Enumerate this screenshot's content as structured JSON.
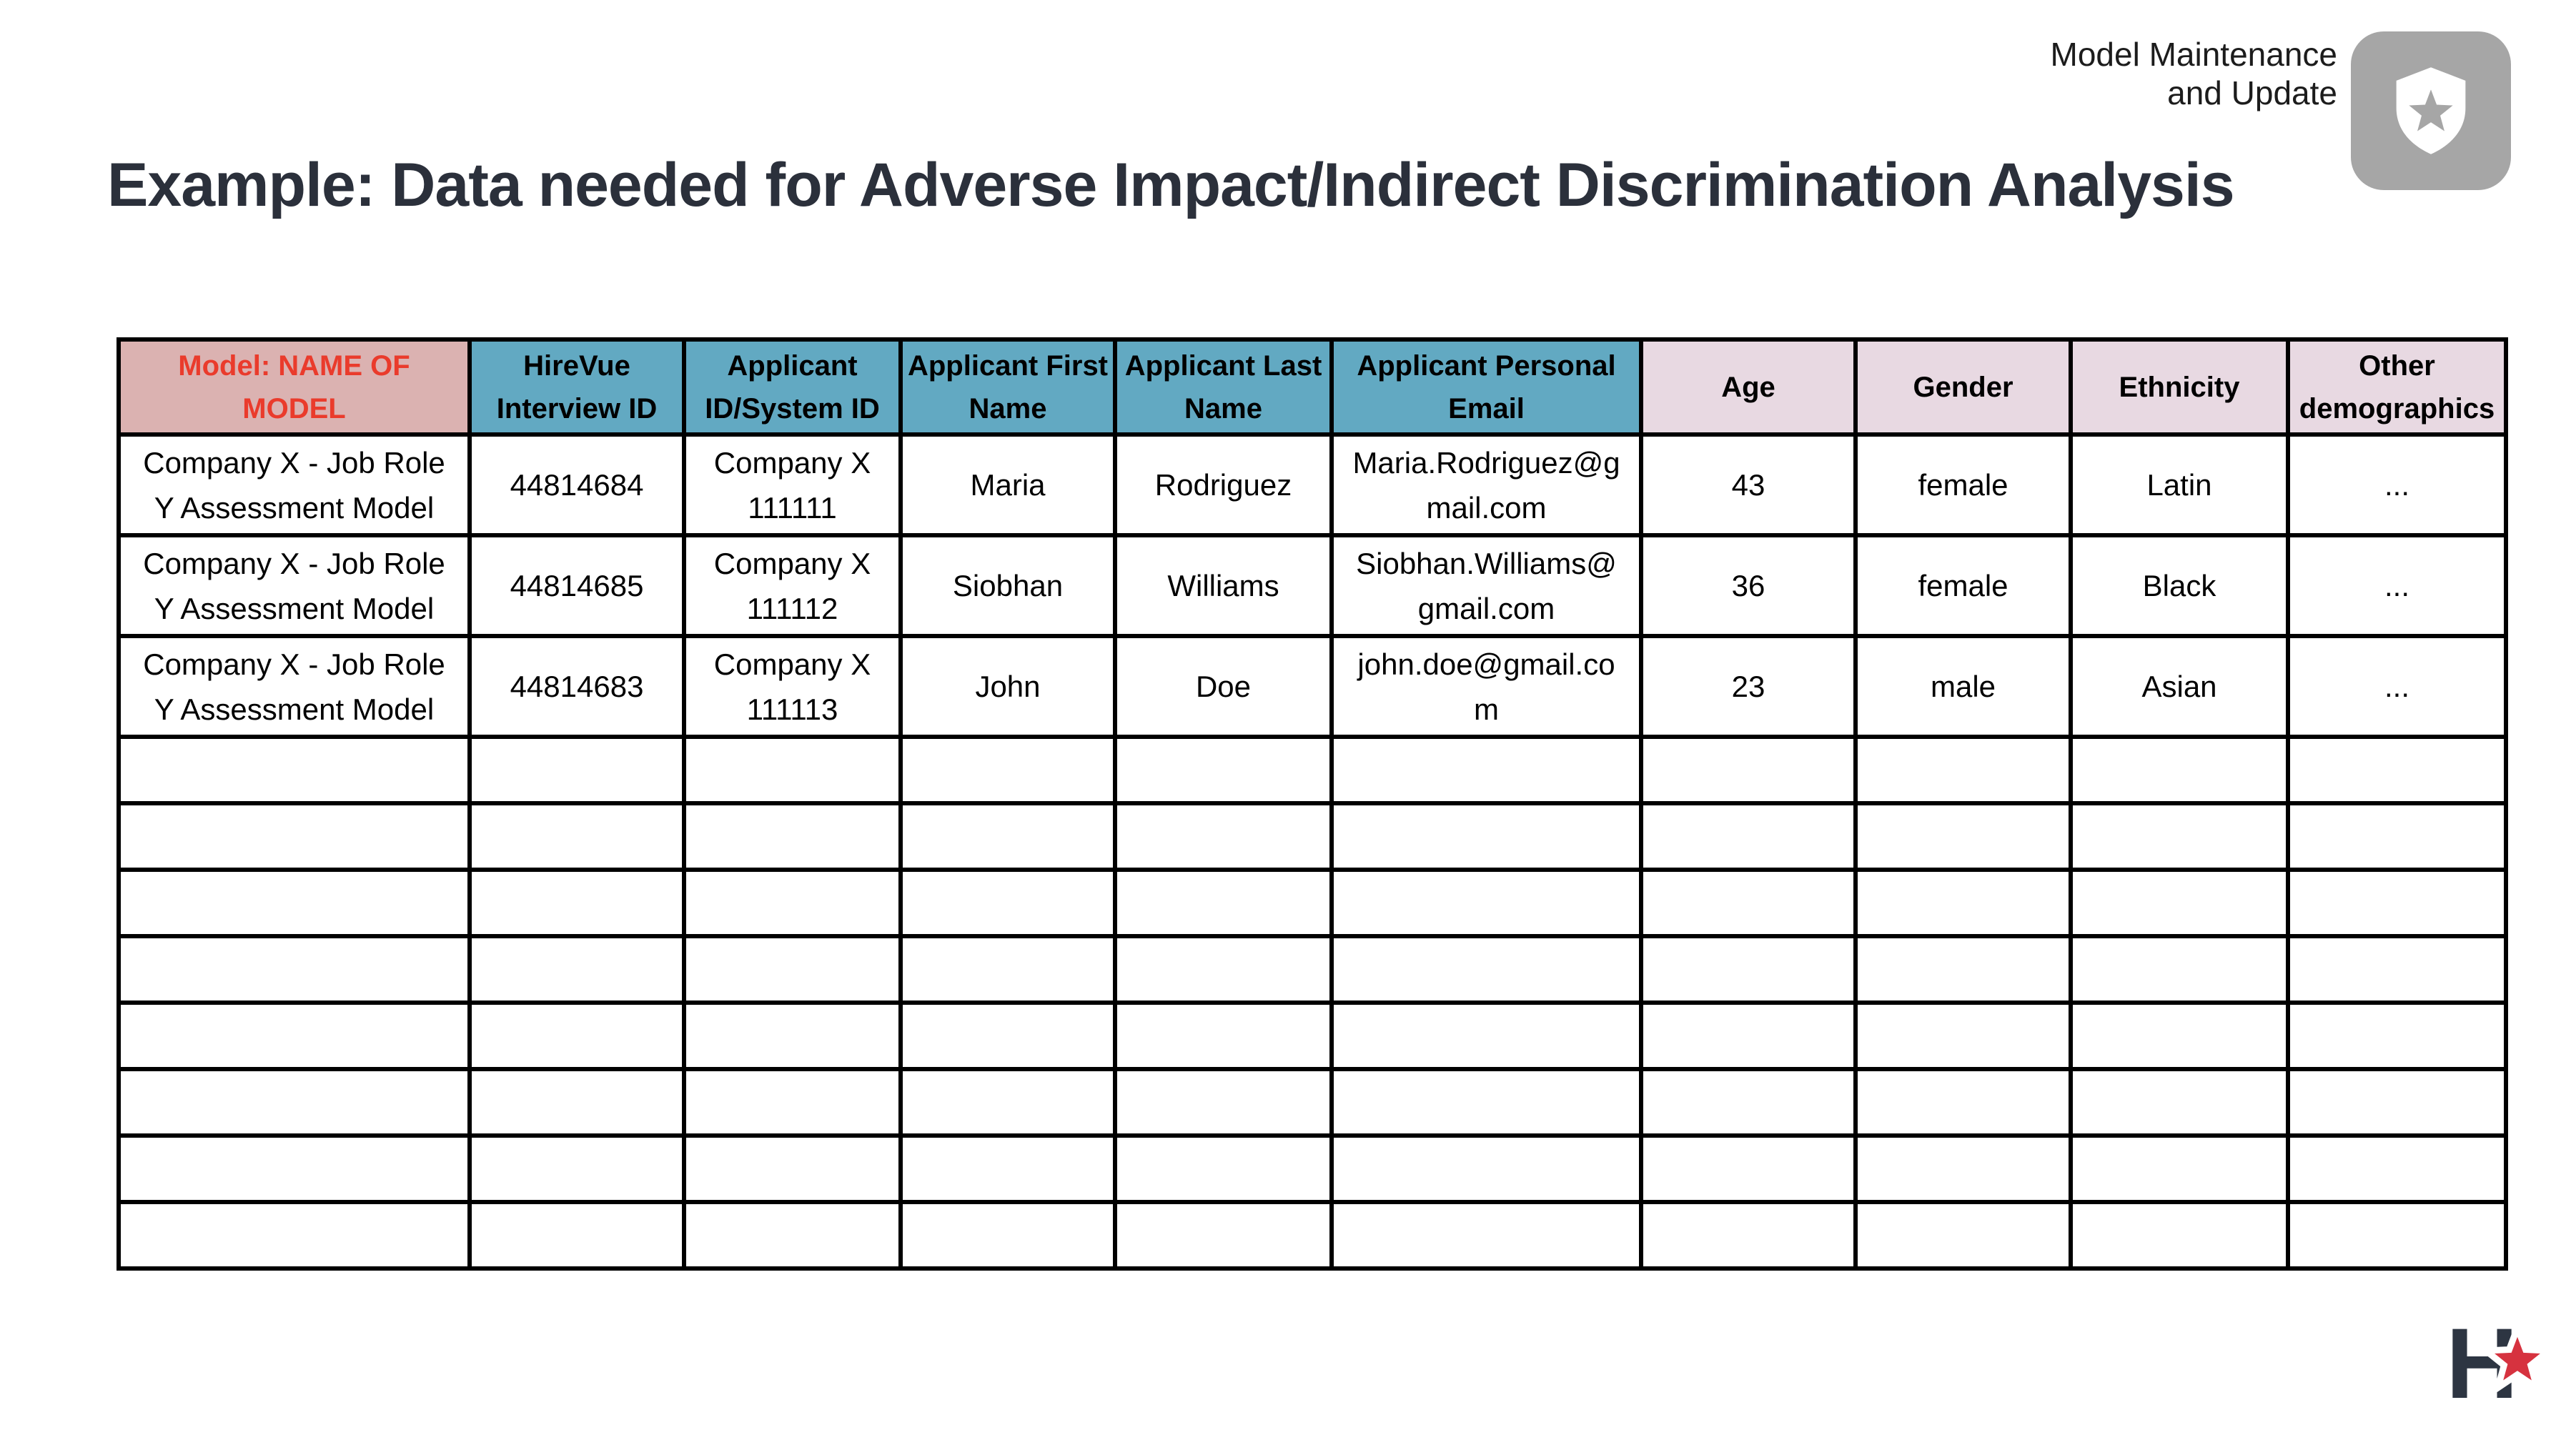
{
  "header": {
    "category_line1": "Model Maintenance",
    "category_line2": "and Update",
    "title": "Example: Data needed for Adverse Impact/Indirect Discrimination Analysis"
  },
  "badge": {
    "icon": "shield-star-icon",
    "background_color": "#a6a6a6",
    "shield_color": "#ffffff",
    "star_color": "#a6a6a6"
  },
  "table": {
    "columns": [
      {
        "label": "Model: NAME OF MODEL",
        "style": "model",
        "text_color": "#ea3b2c",
        "background": "#dbb2b1"
      },
      {
        "label": "HireVue Interview ID",
        "style": "teal",
        "background": "#62a9c2"
      },
      {
        "label": "Applicant ID/System ID",
        "style": "teal",
        "background": "#62a9c2"
      },
      {
        "label": "Applicant First Name",
        "style": "teal",
        "background": "#62a9c2"
      },
      {
        "label": "Applicant Last Name",
        "style": "teal",
        "background": "#62a9c2"
      },
      {
        "label": "Applicant Personal Email",
        "style": "teal",
        "background": "#62a9c2"
      },
      {
        "label": "Age",
        "style": "lav",
        "background": "#e8d9e2"
      },
      {
        "label": "Gender",
        "style": "lav",
        "background": "#e8d9e2"
      },
      {
        "label": "Ethnicity",
        "style": "lav",
        "background": "#e8d9e2"
      },
      {
        "label": "Other demographics",
        "style": "lav",
        "background": "#e8d9e2"
      }
    ],
    "rows": [
      {
        "cells": [
          "Company X - Job Role Y Assessment Model",
          "44814684",
          "Company X 111111",
          "Maria",
          "Rodriguez",
          "Maria.Rodriguez@gmail.com",
          "43",
          "female",
          "Latin",
          "..."
        ]
      },
      {
        "cells": [
          "Company X - Job Role Y Assessment Model",
          "44814685",
          "Company X 111112",
          "Siobhan",
          "Williams",
          "Siobhan.Williams@gmail.com",
          "36",
          "female",
          "Black",
          "..."
        ]
      },
      {
        "cells": [
          "Company X - Job Role Y Assessment Model",
          "44814683",
          "Company X 111113",
          "John",
          "Doe",
          "john.doe@gmail.com",
          "23",
          "male",
          "Asian",
          "..."
        ]
      }
    ],
    "empty_row_count": 8,
    "border_color": "#000000"
  },
  "logo": {
    "letter": "H",
    "letter_color": "#2d3542",
    "star_color": "#d6323f"
  }
}
